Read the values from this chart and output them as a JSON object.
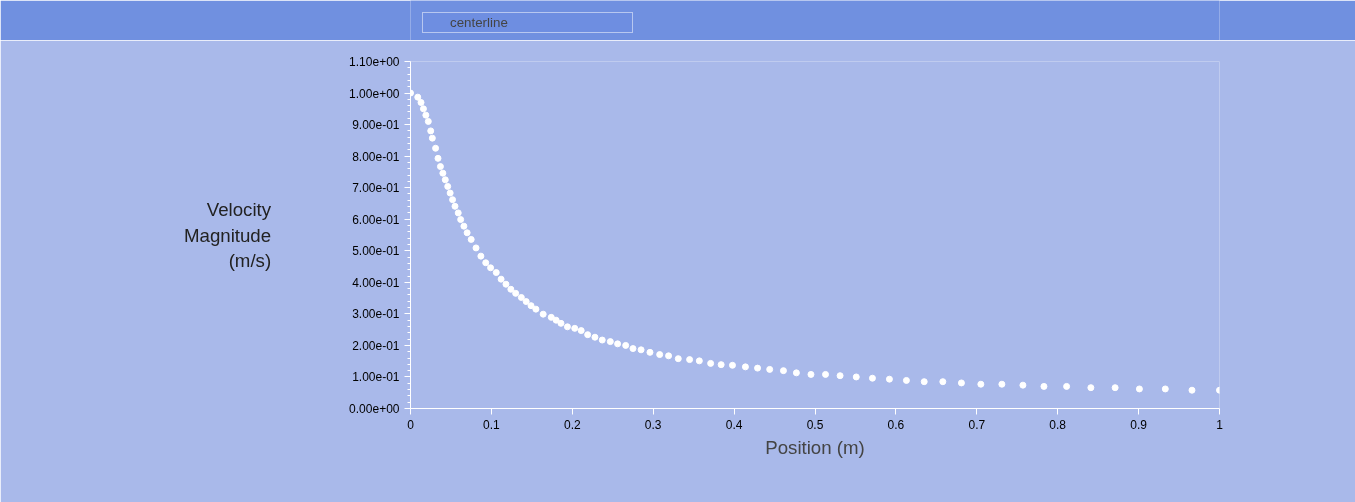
{
  "chart_data": {
    "type": "scatter",
    "xlabel": "Position (m)",
    "ylabel": "Velocity Magnitude (m/s)",
    "legend": "top left",
    "marker": "circle",
    "grid": false,
    "xlim": [
      0,
      1
    ],
    "ylim": [
      0,
      1.1
    ],
    "xticks": [
      0,
      0.1,
      0.2,
      0.3,
      0.4,
      0.5,
      0.6,
      0.7,
      0.8,
      0.9,
      1
    ],
    "yticks": [
      {
        "value": 0,
        "label": "0.00e+00"
      },
      {
        "value": 0.1,
        "label": "1.00e-01"
      },
      {
        "value": 0.2,
        "label": "2.00e-01"
      },
      {
        "value": 0.3,
        "label": "3.00e-01"
      },
      {
        "value": 0.4,
        "label": "4.00e-01"
      },
      {
        "value": 0.5,
        "label": "5.00e-01"
      },
      {
        "value": 0.6,
        "label": "6.00e-01"
      },
      {
        "value": 0.7,
        "label": "7.00e-01"
      },
      {
        "value": 0.8,
        "label": "8.00e-01"
      },
      {
        "value": 0.9,
        "label": "9.00e-01"
      },
      {
        "value": 1.0,
        "label": "1.00e+00"
      },
      {
        "value": 1.1,
        "label": "1.10e+00"
      }
    ],
    "series": [
      {
        "name": "centerline",
        "color": "#ffffff",
        "x": [
          0,
          0.009,
          0.013,
          0.016,
          0.019,
          0.022,
          0.025,
          0.027,
          0.031,
          0.034,
          0.037,
          0.04,
          0.043,
          0.046,
          0.049,
          0.052,
          0.055,
          0.059,
          0.062,
          0.066,
          0.07,
          0.075,
          0.081,
          0.087,
          0.093,
          0.099,
          0.106,
          0.112,
          0.118,
          0.124,
          0.13,
          0.137,
          0.143,
          0.149,
          0.155,
          0.164,
          0.174,
          0.18,
          0.186,
          0.194,
          0.203,
          0.211,
          0.219,
          0.228,
          0.237,
          0.247,
          0.256,
          0.266,
          0.275,
          0.285,
          0.296,
          0.308,
          0.319,
          0.331,
          0.345,
          0.357,
          0.371,
          0.384,
          0.398,
          0.414,
          0.429,
          0.444,
          0.461,
          0.477,
          0.495,
          0.513,
          0.531,
          0.551,
          0.571,
          0.592,
          0.613,
          0.635,
          0.658,
          0.681,
          0.705,
          0.731,
          0.757,
          0.783,
          0.811,
          0.841,
          0.871,
          0.901,
          0.933,
          0.966,
          1.0
        ],
        "values": [
          1.0,
          0.987,
          0.97,
          0.95,
          0.93,
          0.91,
          0.88,
          0.857,
          0.825,
          0.793,
          0.767,
          0.746,
          0.725,
          0.704,
          0.683,
          0.662,
          0.641,
          0.62,
          0.599,
          0.578,
          0.557,
          0.536,
          0.509,
          0.483,
          0.462,
          0.446,
          0.431,
          0.41,
          0.394,
          0.378,
          0.365,
          0.352,
          0.339,
          0.326,
          0.315,
          0.299,
          0.289,
          0.28,
          0.27,
          0.259,
          0.254,
          0.247,
          0.234,
          0.226,
          0.217,
          0.212,
          0.205,
          0.2,
          0.19,
          0.186,
          0.178,
          0.171,
          0.167,
          0.158,
          0.155,
          0.151,
          0.143,
          0.139,
          0.137,
          0.132,
          0.128,
          0.124,
          0.12,
          0.113,
          0.108,
          0.108,
          0.104,
          0.1,
          0.096,
          0.093,
          0.089,
          0.085,
          0.085,
          0.081,
          0.077,
          0.077,
          0.074,
          0.07,
          0.07,
          0.066,
          0.066,
          0.062,
          0.062,
          0.058,
          0.058
        ]
      }
    ]
  }
}
